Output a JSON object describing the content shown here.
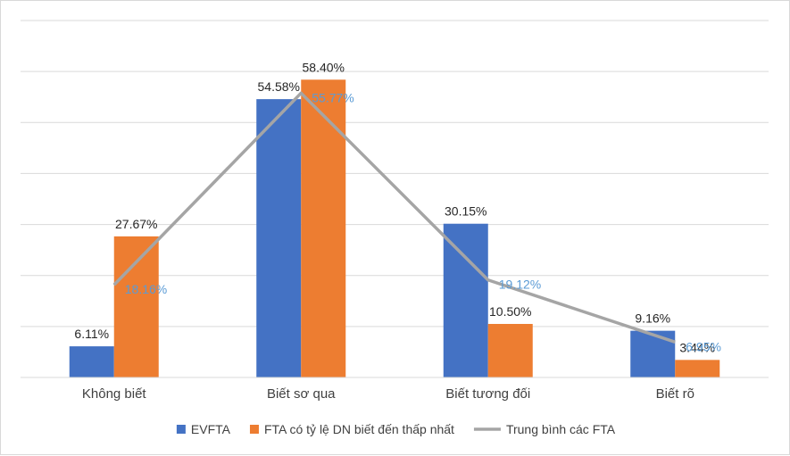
{
  "chart_data": {
    "type": "bar",
    "categories": [
      "Không biết",
      "Biết sơ qua",
      "Biết tương đối",
      "Biết rõ"
    ],
    "series": [
      {
        "name": "EVFTA",
        "kind": "bar",
        "color": "#4472c4",
        "values": [
          6.11,
          54.58,
          30.15,
          9.16
        ],
        "labels": [
          "6.11%",
          "54.58%",
          "30.15%",
          "9.16%"
        ]
      },
      {
        "name": "FTA có tỷ lệ DN biết đến thấp nhất",
        "kind": "bar",
        "color": "#ed7d31",
        "values": [
          27.67,
          58.4,
          10.5,
          3.44
        ],
        "labels": [
          "27.67%",
          "58.40%",
          "10.50%",
          "3.44%"
        ]
      },
      {
        "name": "Trung bình các FTA",
        "kind": "line",
        "color": "#a5a5a5",
        "label_color": "#5b9bd5",
        "values": [
          18.16,
          55.77,
          19.12,
          6.95
        ],
        "labels": [
          "18.16%",
          "55.77%",
          "19.12%",
          "6.95%"
        ]
      }
    ],
    "ylim": [
      0,
      70
    ],
    "grid": true,
    "legend_position": "bottom"
  }
}
